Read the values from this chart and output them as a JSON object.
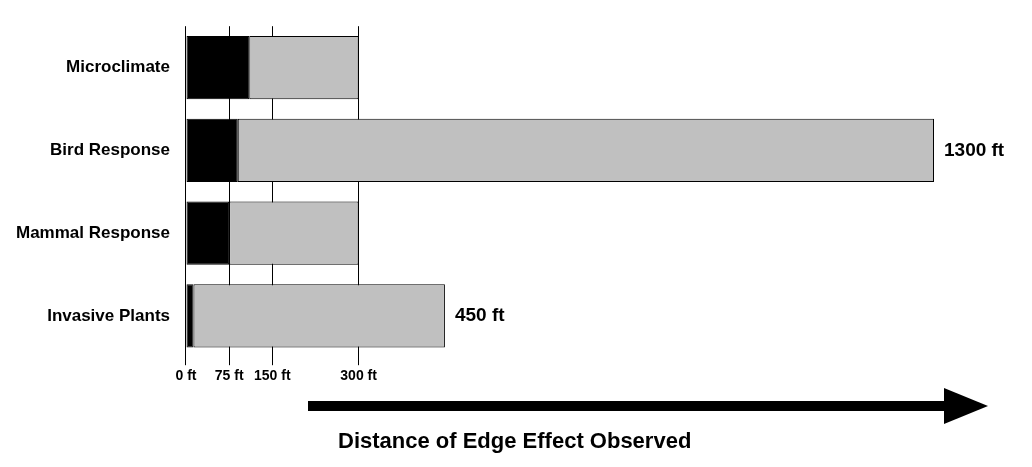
{
  "chart_data": {
    "type": "bar",
    "orientation": "horizontal",
    "stacked": true,
    "categories": [
      "Microclimate",
      "Bird Response",
      "Mammal Response",
      "Invasive Plants"
    ],
    "series": [
      {
        "color": "#000000",
        "values": [
          110,
          90,
          75,
          13
        ]
      },
      {
        "color": "#c0c0c0",
        "values": [
          190,
          1210,
          225,
          437
        ]
      }
    ],
    "totals": [
      null,
      "1300 ft",
      null,
      "450 ft"
    ],
    "xlim": [
      0,
      1300
    ],
    "xticks": [
      {
        "value": 0,
        "label": "0 ft"
      },
      {
        "value": 75,
        "label": "75 ft"
      },
      {
        "value": 150,
        "label": "150 ft"
      },
      {
        "value": 300,
        "label": "300 ft"
      }
    ],
    "xlabel": "Distance of Edge Effect Observed",
    "grid": "x",
    "legend": false
  }
}
